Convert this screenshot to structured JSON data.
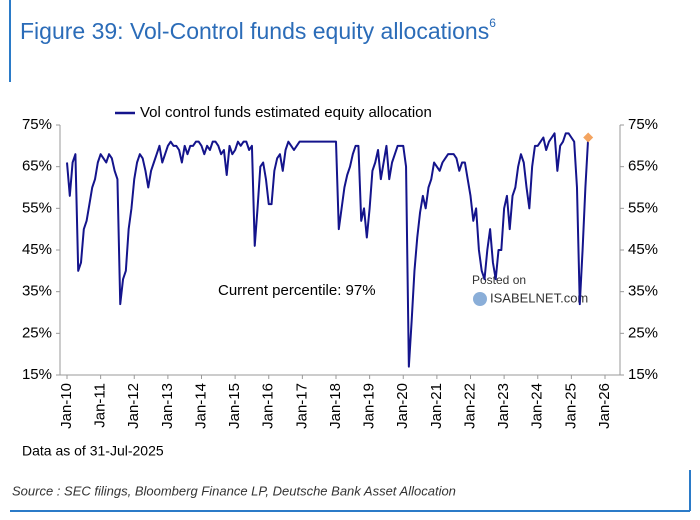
{
  "chart_data": {
    "type": "line",
    "title": "Figure 39: Vol-Control funds equity allocations",
    "title_superscript": "6",
    "annotations": [
      "Current percentile: 97%",
      "Data as of 31-Jul-2025",
      "Source : SEC filings, Bloomberg Finance LP, Deutsche Bank Asset Allocation"
    ],
    "watermark": [
      "Posted on",
      "ISABELNET.com"
    ],
    "x": [
      "2010-01",
      "2010-02",
      "2010-03",
      "2010-04",
      "2010-05",
      "2010-06",
      "2010-07",
      "2010-08",
      "2010-09",
      "2010-10",
      "2010-11",
      "2010-12",
      "2011-01",
      "2011-02",
      "2011-03",
      "2011-04",
      "2011-05",
      "2011-06",
      "2011-07",
      "2011-08",
      "2011-09",
      "2011-10",
      "2011-11",
      "2011-12",
      "2012-01",
      "2012-02",
      "2012-03",
      "2012-04",
      "2012-05",
      "2012-06",
      "2012-07",
      "2012-08",
      "2012-09",
      "2012-10",
      "2012-11",
      "2012-12",
      "2013-01",
      "2013-02",
      "2013-03",
      "2013-04",
      "2013-05",
      "2013-06",
      "2013-07",
      "2013-08",
      "2013-09",
      "2013-10",
      "2013-11",
      "2013-12",
      "2014-01",
      "2014-02",
      "2014-03",
      "2014-04",
      "2014-05",
      "2014-06",
      "2014-07",
      "2014-08",
      "2014-09",
      "2014-10",
      "2014-11",
      "2014-12",
      "2015-01",
      "2015-02",
      "2015-03",
      "2015-04",
      "2015-05",
      "2015-06",
      "2015-07",
      "2015-08",
      "2015-09",
      "2015-10",
      "2015-11",
      "2015-12",
      "2016-01",
      "2016-02",
      "2016-03",
      "2016-04",
      "2016-05",
      "2016-06",
      "2016-07",
      "2016-08",
      "2016-09",
      "2016-10",
      "2016-11",
      "2016-12",
      "2017-01",
      "2017-02",
      "2017-03",
      "2017-04",
      "2017-05",
      "2017-06",
      "2017-07",
      "2017-08",
      "2017-09",
      "2017-10",
      "2017-11",
      "2017-12",
      "2018-01",
      "2018-02",
      "2018-03",
      "2018-04",
      "2018-05",
      "2018-06",
      "2018-07",
      "2018-08",
      "2018-09",
      "2018-10",
      "2018-11",
      "2018-12",
      "2019-01",
      "2019-02",
      "2019-03",
      "2019-04",
      "2019-05",
      "2019-06",
      "2019-07",
      "2019-08",
      "2019-09",
      "2019-10",
      "2019-11",
      "2019-12",
      "2020-01",
      "2020-02",
      "2020-03",
      "2020-04",
      "2020-05",
      "2020-06",
      "2020-07",
      "2020-08",
      "2020-09",
      "2020-10",
      "2020-11",
      "2020-12",
      "2021-01",
      "2021-02",
      "2021-03",
      "2021-04",
      "2021-05",
      "2021-06",
      "2021-07",
      "2021-08",
      "2021-09",
      "2021-10",
      "2021-11",
      "2021-12",
      "2022-01",
      "2022-02",
      "2022-03",
      "2022-04",
      "2022-05",
      "2022-06",
      "2022-07",
      "2022-08",
      "2022-09",
      "2022-10",
      "2022-11",
      "2022-12",
      "2023-01",
      "2023-02",
      "2023-03",
      "2023-04",
      "2023-05",
      "2023-06",
      "2023-07",
      "2023-08",
      "2023-09",
      "2023-10",
      "2023-11",
      "2023-12",
      "2024-01",
      "2024-02",
      "2024-03",
      "2024-04",
      "2024-05",
      "2024-06",
      "2024-07",
      "2024-08",
      "2024-09",
      "2024-10",
      "2024-11",
      "2024-12",
      "2025-01",
      "2025-02",
      "2025-03",
      "2025-04",
      "2025-05",
      "2025-06",
      "2025-07"
    ],
    "series": [
      {
        "name": "Vol control funds estimated equity allocation",
        "color": "#14148c",
        "values": [
          66,
          58,
          66,
          68,
          40,
          42,
          50,
          52,
          56,
          60,
          62,
          66,
          68,
          67,
          66,
          68,
          67,
          64,
          62,
          32,
          38,
          40,
          50,
          55,
          62,
          66,
          68,
          67,
          64,
          60,
          64,
          66,
          68,
          70,
          66,
          68,
          70,
          71,
          70,
          70,
          69,
          66,
          70,
          68,
          70,
          70,
          71,
          71,
          70,
          68,
          70,
          69,
          71,
          71,
          70,
          68,
          69,
          63,
          70,
          68,
          69,
          71,
          70,
          71,
          71,
          69,
          70,
          46,
          55,
          65,
          66,
          62,
          56,
          56,
          64,
          67,
          68,
          64,
          69,
          71,
          70,
          69,
          70,
          71,
          71,
          71,
          71,
          71,
          71,
          71,
          71,
          71,
          71,
          71,
          71,
          71,
          71,
          50,
          55,
          60,
          63,
          65,
          68,
          70,
          70,
          52,
          55,
          48,
          55,
          64,
          66,
          69,
          62,
          66,
          70,
          62,
          66,
          68,
          70,
          70,
          70,
          65,
          17,
          28,
          40,
          48,
          54,
          58,
          55,
          60,
          62,
          66,
          65,
          64,
          66,
          67,
          68,
          68,
          68,
          67,
          64,
          66,
          66,
          62,
          58,
          52,
          55,
          45,
          40,
          38,
          45,
          50,
          42,
          38,
          45,
          45,
          55,
          58,
          50,
          58,
          60,
          65,
          68,
          66,
          60,
          55,
          65,
          70,
          70,
          71,
          72,
          69,
          71,
          72,
          73,
          64,
          70,
          71,
          73,
          73,
          72,
          71,
          60,
          32,
          45,
          60,
          72
        ]
      }
    ],
    "last_point_color": "#f4a460",
    "xlim": [
      "2010-01",
      "2026-01"
    ],
    "xticks": [
      {
        "value": "2010-01",
        "label": "Jan-10"
      },
      {
        "value": "2011-01",
        "label": "Jan-11"
      },
      {
        "value": "2012-01",
        "label": "Jan-12"
      },
      {
        "value": "2013-01",
        "label": "Jan-13"
      },
      {
        "value": "2014-01",
        "label": "Jan-14"
      },
      {
        "value": "2015-01",
        "label": "Jan-15"
      },
      {
        "value": "2016-01",
        "label": "Jan-16"
      },
      {
        "value": "2017-01",
        "label": "Jan-17"
      },
      {
        "value": "2018-01",
        "label": "Jan-18"
      },
      {
        "value": "2019-01",
        "label": "Jan-19"
      },
      {
        "value": "2020-01",
        "label": "Jan-20"
      },
      {
        "value": "2021-01",
        "label": "Jan-21"
      },
      {
        "value": "2022-01",
        "label": "Jan-22"
      },
      {
        "value": "2023-01",
        "label": "Jan-23"
      },
      {
        "value": "2024-01",
        "label": "Jan-24"
      },
      {
        "value": "2025-01",
        "label": "Jan-25"
      },
      {
        "value": "2026-01",
        "label": "Jan-26"
      }
    ],
    "ylim": [
      15,
      75
    ],
    "yticks": [
      {
        "value": 15,
        "label": "15%"
      },
      {
        "value": 25,
        "label": "25%"
      },
      {
        "value": 35,
        "label": "35%"
      },
      {
        "value": 45,
        "label": "45%"
      },
      {
        "value": 55,
        "label": "55%"
      },
      {
        "value": 65,
        "label": "65%"
      },
      {
        "value": 75,
        "label": "75%"
      }
    ],
    "y2lim": [
      15,
      75
    ],
    "y2ticks": [
      {
        "value": 15,
        "label": "15%"
      },
      {
        "value": 25,
        "label": "25%"
      },
      {
        "value": 35,
        "label": "35%"
      },
      {
        "value": 45,
        "label": "45%"
      },
      {
        "value": 55,
        "label": "55%"
      },
      {
        "value": 65,
        "label": "65%"
      },
      {
        "value": 75,
        "label": "75%"
      }
    ],
    "grid": false
  }
}
